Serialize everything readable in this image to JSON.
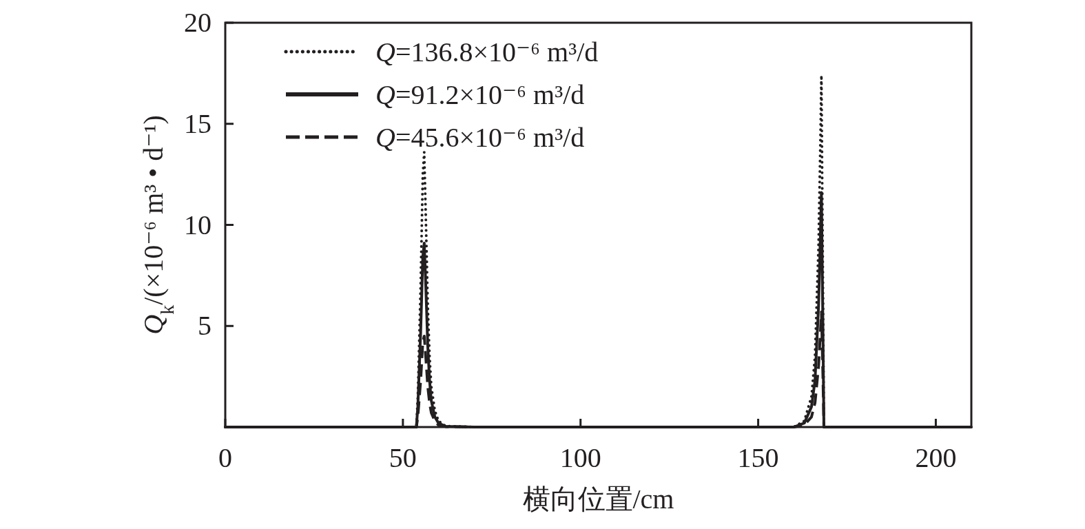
{
  "chart_data": {
    "type": "line",
    "xlabel": "横向位置/cm",
    "ylabel": "*Q*$_{k}$/(×10⁻⁶ m³ • d⁻¹)",
    "xlim": [
      0,
      210
    ],
    "ylim": [
      0,
      20
    ],
    "xticks": [
      0,
      50,
      100,
      150,
      200
    ],
    "yticks": [
      5,
      10,
      15,
      20
    ],
    "legend": "top left",
    "x": [
      0,
      53.8,
      54.2,
      55,
      55.6,
      56,
      56.5,
      57,
      57.5,
      58,
      59,
      60,
      62,
      70,
      160,
      163,
      165,
      166,
      167,
      167.5,
      167.8,
      168.2,
      168.5,
      210
    ],
    "series": [
      {
        "name": "*Q*=136.8×10⁻⁶ m³/d",
        "color": "#231f20",
        "line_style": "dotted",
        "values": [
          0,
          0,
          1.5,
          7,
          12.5,
          13.6,
          10,
          6,
          3.5,
          2,
          0.8,
          0.3,
          0.05,
          0,
          0,
          0.3,
          1.5,
          3.5,
          9,
          14,
          17.4,
          8,
          0,
          0
        ]
      },
      {
        "name": "*Q*=91.2×10⁻⁶ m³/d",
        "color": "#231f20",
        "line_style": "solid",
        "values": [
          0,
          0,
          1,
          4.7,
          8.4,
          9.1,
          6.7,
          4,
          2.3,
          1.3,
          0.5,
          0.2,
          0.03,
          0,
          0,
          0.2,
          1,
          2.3,
          6,
          9.3,
          11.6,
          5.3,
          0,
          0
        ]
      },
      {
        "name": "*Q*=45.6×10⁻⁶ m³/d",
        "color": "#231f20",
        "line_style": "dashed",
        "values": [
          0,
          0,
          0.5,
          2.3,
          4.2,
          4.5,
          3.3,
          2,
          1.2,
          0.7,
          0.3,
          0.1,
          0.02,
          0,
          0,
          0.1,
          0.5,
          1.2,
          3,
          4.6,
          5.7,
          2.7,
          0,
          0
        ]
      }
    ]
  }
}
